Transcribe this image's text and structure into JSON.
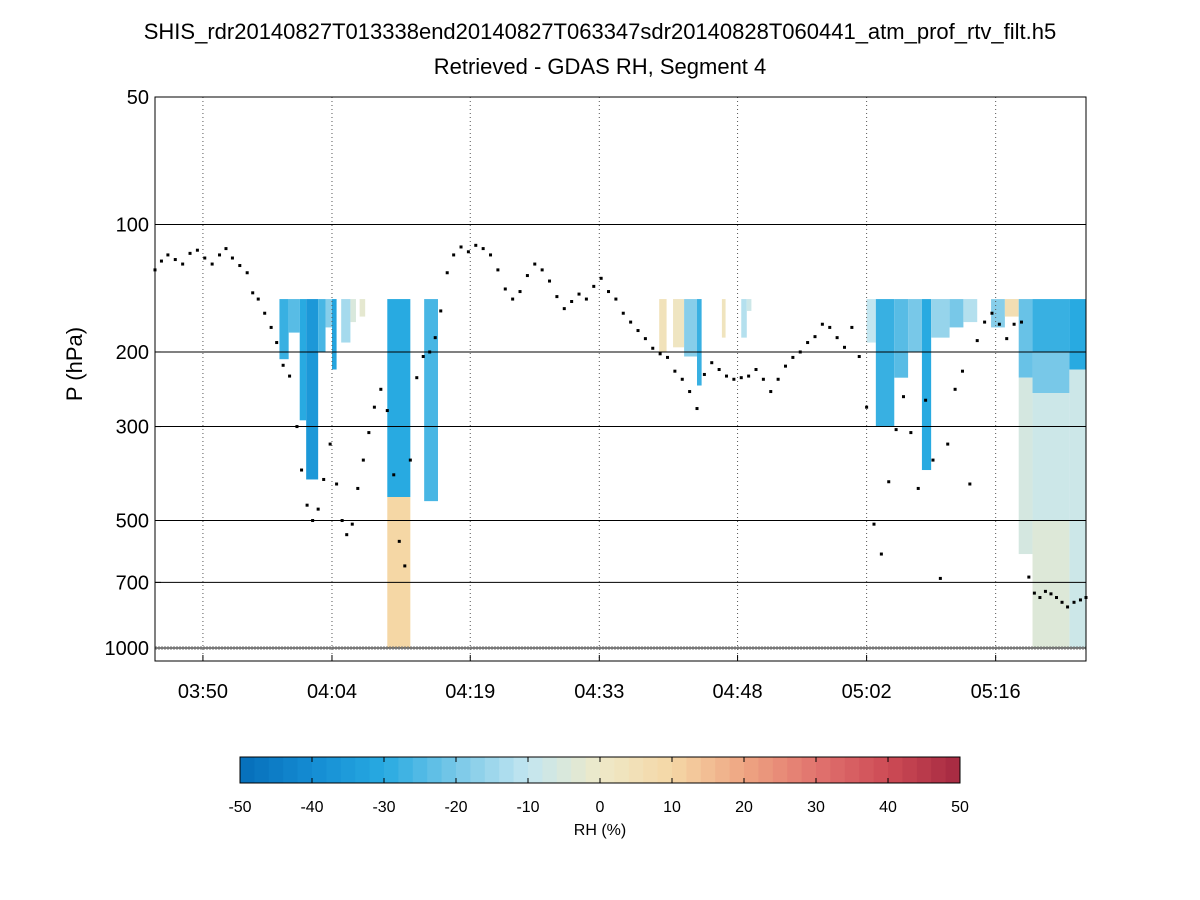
{
  "chart_data": {
    "type": "heatmap",
    "title": "SHIS_rdr20140827T013338end20140827T063347sdr20140828T060441_atm_prof_rtv_filt.h5",
    "subtitle": "Retrieved - GDAS RH, Segment 4",
    "ylabel": "P (hPa)",
    "y_scale": "log",
    "y_reversed": true,
    "ylim": [
      50,
      1000
    ],
    "y_ticks": [
      50,
      100,
      200,
      300,
      500,
      700,
      1000
    ],
    "y_tick_labels": [
      "50",
      "100",
      "200",
      "300",
      "500",
      "700",
      "1000"
    ],
    "x_ticks_min": [
      230,
      244,
      259,
      273,
      288,
      302,
      316
    ],
    "x_tick_labels": [
      "03:50",
      "04:04",
      "04:19",
      "04:33",
      "04:48",
      "05:02",
      "05:16"
    ],
    "xlim_min": [
      224.8,
      325.8
    ],
    "grid": "x dotted, y solid",
    "colorbar": {
      "label": "RH (%)",
      "range": [
        -50,
        50
      ],
      "ticks": [
        "-50",
        "-40",
        "-30",
        "-20",
        "-10",
        "0",
        "10",
        "20",
        "30",
        "40",
        "50"
      ],
      "orientation": "horizontal",
      "placement": "bottom"
    },
    "heatmap_columns": [
      {
        "t": 238.3,
        "t2": 239.3,
        "p_top": 150,
        "p_bot": 208,
        "rh": -28
      },
      {
        "t": 239.3,
        "t2": 240.5,
        "p_top": 150,
        "p_bot": 180,
        "rh": -24
      },
      {
        "t": 240.5,
        "t2": 241.2,
        "p_top": 150,
        "p_bot": 290,
        "rh": -30
      },
      {
        "t": 241.2,
        "t2": 242.5,
        "p_top": 150,
        "p_bot": 400,
        "rh": -36
      },
      {
        "t": 242.5,
        "t2": 243.3,
        "p_top": 150,
        "p_bot": 200,
        "rh": -26
      },
      {
        "t": 243.3,
        "t2": 244.0,
        "p_top": 150,
        "p_bot": 175,
        "rh": -18
      },
      {
        "t": 244.0,
        "t2": 244.5,
        "p_top": 150,
        "p_bot": 220,
        "rh": -32
      },
      {
        "t": 245.0,
        "t2": 246.0,
        "p_top": 150,
        "p_bot": 190,
        "rh": -14
      },
      {
        "t": 246.0,
        "t2": 246.6,
        "p_top": 150,
        "p_bot": 170,
        "rh": -5
      },
      {
        "t": 247.0,
        "t2": 247.6,
        "p_top": 150,
        "p_bot": 165,
        "rh": -2
      },
      {
        "t": 250.0,
        "t2": 252.5,
        "p_top": 150,
        "p_bot": 440,
        "rh": -30
      },
      {
        "t": 250.0,
        "t2": 252.5,
        "p_top": 440,
        "p_bot": 1000,
        "rh": 10
      },
      {
        "t": 254.0,
        "t2": 255.5,
        "p_top": 150,
        "p_bot": 450,
        "rh": -26
      },
      {
        "t": 279.5,
        "t2": 280.3,
        "p_top": 150,
        "p_bot": 200,
        "rh": 4
      },
      {
        "t": 281.0,
        "t2": 282.2,
        "p_top": 150,
        "p_bot": 195,
        "rh": 2
      },
      {
        "t": 282.2,
        "t2": 283.6,
        "p_top": 150,
        "p_bot": 205,
        "rh": -18
      },
      {
        "t": 283.6,
        "t2": 284.1,
        "p_top": 150,
        "p_bot": 240,
        "rh": -28
      },
      {
        "t": 286.3,
        "t2": 286.7,
        "p_top": 150,
        "p_bot": 185,
        "rh": 3
      },
      {
        "t": 288.4,
        "t2": 289.0,
        "p_top": 150,
        "p_bot": 185,
        "rh": -12
      },
      {
        "t": 289.0,
        "t2": 289.5,
        "p_top": 150,
        "p_bot": 160,
        "rh": -8
      },
      {
        "t": 302.0,
        "t2": 303.0,
        "p_top": 150,
        "p_bot": 190,
        "rh": -10
      },
      {
        "t": 303.0,
        "t2": 305.0,
        "p_top": 150,
        "p_bot": 300,
        "rh": -28
      },
      {
        "t": 305.0,
        "t2": 306.5,
        "p_top": 150,
        "p_bot": 230,
        "rh": -24
      },
      {
        "t": 306.5,
        "t2": 308.0,
        "p_top": 150,
        "p_bot": 200,
        "rh": -20
      },
      {
        "t": 308.0,
        "t2": 309.0,
        "p_top": 150,
        "p_bot": 380,
        "rh": -30
      },
      {
        "t": 309.0,
        "t2": 311.0,
        "p_top": 150,
        "p_bot": 185,
        "rh": -16
      },
      {
        "t": 311.0,
        "t2": 312.5,
        "p_top": 150,
        "p_bot": 175,
        "rh": -20
      },
      {
        "t": 312.5,
        "t2": 314.0,
        "p_top": 150,
        "p_bot": 170,
        "rh": -12
      },
      {
        "t": 315.5,
        "t2": 317.0,
        "p_top": 150,
        "p_bot": 175,
        "rh": -18
      },
      {
        "t": 317.0,
        "t2": 318.5,
        "p_top": 150,
        "p_bot": 165,
        "rh": 6
      },
      {
        "t": 318.5,
        "t2": 320.0,
        "p_top": 150,
        "p_bot": 230,
        "rh": -22
      },
      {
        "t": 318.5,
        "t2": 320.0,
        "p_top": 230,
        "p_bot": 600,
        "rh": -6
      },
      {
        "t": 320.0,
        "t2": 324.0,
        "p_top": 150,
        "p_bot": 200,
        "rh": -28
      },
      {
        "t": 320.0,
        "t2": 324.0,
        "p_top": 200,
        "p_bot": 250,
        "rh": -20
      },
      {
        "t": 320.0,
        "t2": 324.0,
        "p_top": 250,
        "p_bot": 500,
        "rh": -8
      },
      {
        "t": 320.0,
        "t2": 324.0,
        "p_top": 500,
        "p_bot": 1000,
        "rh": -4
      },
      {
        "t": 324.0,
        "t2": 325.8,
        "p_top": 150,
        "p_bot": 220,
        "rh": -30
      },
      {
        "t": 324.0,
        "t2": 325.8,
        "p_top": 220,
        "p_bot": 1000,
        "rh": -8
      }
    ],
    "tropopause_points": [
      [
        224.8,
        128
      ],
      [
        225.5,
        122
      ],
      [
        226.2,
        118
      ],
      [
        227,
        121
      ],
      [
        227.8,
        124
      ],
      [
        228.6,
        117
      ],
      [
        229.4,
        115
      ],
      [
        230.2,
        120
      ],
      [
        231,
        124
      ],
      [
        231.8,
        118
      ],
      [
        232.5,
        114
      ],
      [
        233.2,
        120
      ],
      [
        234,
        125
      ],
      [
        234.8,
        130
      ],
      [
        235.4,
        145
      ],
      [
        236,
        150
      ],
      [
        236.7,
        162
      ],
      [
        237.4,
        175
      ],
      [
        238,
        190
      ],
      [
        238.7,
        215
      ],
      [
        239.4,
        228
      ],
      [
        240.2,
        300
      ],
      [
        240.7,
        380
      ],
      [
        241.3,
        460
      ],
      [
        241.9,
        500
      ],
      [
        242.5,
        470
      ],
      [
        243.1,
        400
      ],
      [
        243.8,
        330
      ],
      [
        244.5,
        410
      ],
      [
        245.1,
        500
      ],
      [
        245.6,
        540
      ],
      [
        246.2,
        510
      ],
      [
        246.8,
        420
      ],
      [
        247.4,
        360
      ],
      [
        248,
        310
      ],
      [
        248.6,
        270
      ],
      [
        249.3,
        245
      ],
      [
        250,
        275
      ],
      [
        250.7,
        390
      ],
      [
        251.3,
        560
      ],
      [
        251.9,
        640
      ],
      [
        252.5,
        360
      ],
      [
        253.2,
        230
      ],
      [
        253.9,
        205
      ],
      [
        254.6,
        200
      ],
      [
        255.2,
        185
      ],
      [
        255.8,
        160
      ],
      [
        256.5,
        130
      ],
      [
        257.2,
        118
      ],
      [
        258,
        113
      ],
      [
        258.8,
        116
      ],
      [
        259.6,
        112
      ],
      [
        260.4,
        114
      ],
      [
        261.2,
        118
      ],
      [
        262,
        128
      ],
      [
        262.8,
        142
      ],
      [
        263.6,
        150
      ],
      [
        264.4,
        144
      ],
      [
        265.2,
        132
      ],
      [
        266,
        124
      ],
      [
        266.8,
        128
      ],
      [
        267.6,
        136
      ],
      [
        268.4,
        148
      ],
      [
        269.2,
        158
      ],
      [
        270,
        152
      ],
      [
        270.8,
        146
      ],
      [
        271.6,
        150
      ],
      [
        272.4,
        140
      ],
      [
        273.2,
        134
      ],
      [
        274,
        144
      ],
      [
        274.8,
        150
      ],
      [
        275.6,
        162
      ],
      [
        276.4,
        170
      ],
      [
        277.2,
        178
      ],
      [
        278,
        186
      ],
      [
        278.8,
        196
      ],
      [
        279.6,
        202
      ],
      [
        280.4,
        206
      ],
      [
        281.2,
        222
      ],
      [
        282,
        232
      ],
      [
        282.8,
        248
      ],
      [
        283.6,
        272
      ],
      [
        284.4,
        226
      ],
      [
        285.2,
        212
      ],
      [
        286,
        220
      ],
      [
        286.8,
        228
      ],
      [
        287.6,
        232
      ],
      [
        288.4,
        230
      ],
      [
        289.2,
        228
      ],
      [
        290,
        220
      ],
      [
        290.8,
        232
      ],
      [
        291.6,
        248
      ],
      [
        292.4,
        232
      ],
      [
        293.2,
        216
      ],
      [
        294,
        206
      ],
      [
        294.8,
        200
      ],
      [
        295.6,
        190
      ],
      [
        296.4,
        184
      ],
      [
        297.2,
        172
      ],
      [
        298,
        175
      ],
      [
        298.8,
        185
      ],
      [
        299.6,
        195
      ],
      [
        300.4,
        175
      ],
      [
        301.2,
        205
      ],
      [
        302,
        270
      ],
      [
        302.8,
        510
      ],
      [
        303.6,
        600
      ],
      [
        304.4,
        405
      ],
      [
        305.2,
        305
      ],
      [
        306,
        255
      ],
      [
        306.8,
        310
      ],
      [
        307.6,
        420
      ],
      [
        308.4,
        260
      ],
      [
        309.2,
        360
      ],
      [
        310,
        685
      ],
      [
        310.8,
        330
      ],
      [
        311.6,
        245
      ],
      [
        312.4,
        222
      ],
      [
        313.2,
        410
      ],
      [
        314,
        188
      ],
      [
        314.8,
        170
      ],
      [
        315.6,
        162
      ],
      [
        316.4,
        172
      ],
      [
        317.2,
        186
      ],
      [
        318,
        172
      ],
      [
        318.8,
        170
      ],
      [
        319.6,
        680
      ],
      [
        320.2,
        742
      ],
      [
        320.8,
        760
      ],
      [
        321.4,
        735
      ],
      [
        322,
        745
      ],
      [
        322.6,
        760
      ],
      [
        323.2,
        780
      ],
      [
        323.8,
        800
      ],
      [
        324.5,
        780
      ],
      [
        325.2,
        770
      ],
      [
        325.8,
        760
      ]
    ]
  }
}
